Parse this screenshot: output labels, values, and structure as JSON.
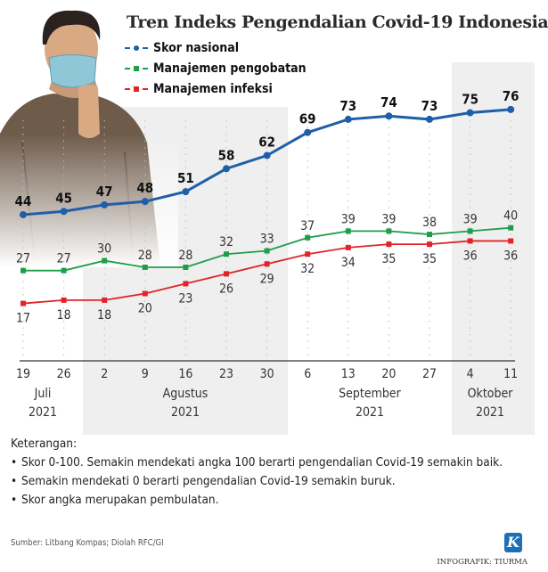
{
  "chart_data": {
    "type": "line",
    "title": "Tren Indeks Pengendalian Covid-19 Indonesia",
    "x": [
      "19",
      "26",
      "2",
      "9",
      "16",
      "23",
      "30",
      "6",
      "13",
      "20",
      "27",
      "4",
      "11"
    ],
    "months": [
      {
        "name": "Juli",
        "year": "2021"
      },
      {
        "name": "Agustus",
        "year": "2021"
      },
      {
        "name": "September",
        "year": "2021"
      },
      {
        "name": "Oktober",
        "year": "2021"
      }
    ],
    "ylim": [
      0,
      100
    ],
    "series": [
      {
        "name": "Skor nasional",
        "color": "#1f5fa8",
        "values": [
          44,
          45,
          47,
          48,
          51,
          58,
          62,
          69,
          73,
          74,
          73,
          75,
          76
        ]
      },
      {
        "name": "Manajemen pengobatan",
        "color": "#1e9e4a",
        "values": [
          27,
          27,
          30,
          28,
          28,
          32,
          33,
          37,
          39,
          39,
          38,
          39,
          40
        ]
      },
      {
        "name": "Manajemen infeksi",
        "color": "#e0242a",
        "values": [
          17,
          18,
          18,
          20,
          23,
          26,
          29,
          32,
          34,
          35,
          35,
          36,
          36
        ]
      }
    ],
    "legend_position": "top-left"
  },
  "notes": {
    "heading": "Keterangan:",
    "items": [
      "Skor 0-100. Semakin mendekati angka 100 berarti pengendalian Covid-19 semakin baik.",
      "Semakin mendekati 0 berarti pengendalian Covid-19 semakin buruk.",
      "Skor angka merupakan pembulatan."
    ]
  },
  "source": "Sumber: Litbang Kompas; Diolah RFC/GI",
  "logo_letter": "K",
  "credit": "INFOGRAFIK: TIURMA"
}
